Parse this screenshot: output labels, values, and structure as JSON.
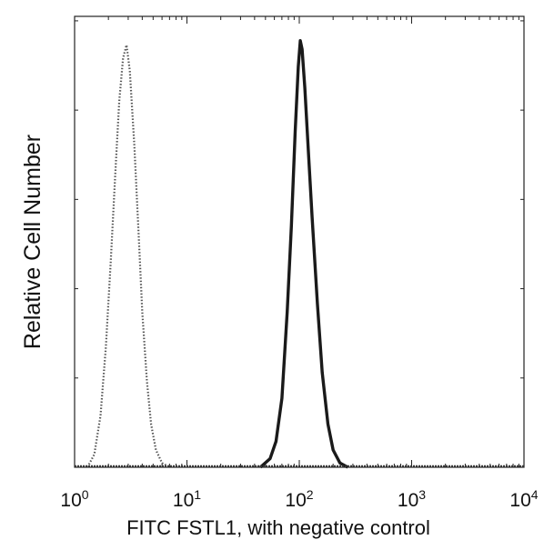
{
  "chart_data": {
    "type": "line",
    "title": "",
    "xlabel": "FITC FSTL1, with negative control",
    "ylabel": "Relative Cell Number",
    "x_scale": "log",
    "xlim": [
      1,
      10000
    ],
    "ylim": [
      0,
      1.0
    ],
    "grid": false,
    "x_ticks": [
      {
        "value": 1,
        "base": "10",
        "exp": "0"
      },
      {
        "value": 10,
        "base": "10",
        "exp": "1"
      },
      {
        "value": 100,
        "base": "10",
        "exp": "2"
      },
      {
        "value": 1000,
        "base": "10",
        "exp": "3"
      },
      {
        "value": 10000,
        "base": "10",
        "exp": "4"
      }
    ],
    "series": [
      {
        "style": "dotted",
        "x": [
          1.3,
          1.5,
          1.7,
          1.9,
          2.1,
          2.3,
          2.5,
          2.7,
          2.9,
          3.1,
          3.4,
          3.7,
          4.0,
          4.4,
          4.8,
          5.3,
          6.0,
          7.0
        ],
        "y": [
          0.0,
          0.03,
          0.12,
          0.28,
          0.48,
          0.68,
          0.85,
          0.95,
          0.98,
          0.92,
          0.75,
          0.55,
          0.36,
          0.2,
          0.1,
          0.04,
          0.01,
          0.0
        ]
      },
      {
        "style": "solid",
        "x": [
          45,
          55,
          62,
          70,
          78,
          85,
          92,
          98,
          102,
          106,
          112,
          120,
          130,
          145,
          160,
          180,
          200,
          230,
          270
        ],
        "y": [
          0.0,
          0.02,
          0.06,
          0.16,
          0.36,
          0.56,
          0.78,
          0.93,
          0.99,
          0.97,
          0.88,
          0.74,
          0.58,
          0.38,
          0.22,
          0.1,
          0.04,
          0.01,
          0.0
        ]
      }
    ]
  }
}
